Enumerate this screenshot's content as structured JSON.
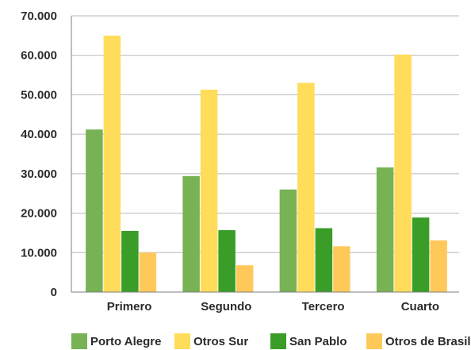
{
  "chart_data": {
    "type": "bar",
    "categories": [
      "Primero",
      "Segundo",
      "Tercero",
      "Cuarto"
    ],
    "series": [
      {
        "name": "Porto Alegre",
        "color": "#77b255",
        "values": [
          41200,
          29400,
          26000,
          31600
        ]
      },
      {
        "name": "Otros Sur",
        "color": "#ffdc5a",
        "values": [
          65000,
          51300,
          53000,
          60200
        ]
      },
      {
        "name": "San Pablo",
        "color": "#3a9d28",
        "values": [
          15500,
          15700,
          16200,
          18900
        ]
      },
      {
        "name": "Otros de Brasil",
        "color": "#ffc95a",
        "values": [
          10000,
          6800,
          11600,
          13100
        ]
      }
    ],
    "ylim": [
      0,
      70000
    ],
    "yticks": [
      "0",
      "10.000",
      "20.000",
      "30.000",
      "40.000",
      "50.000",
      "60.000",
      "70.000"
    ],
    "ytick_values": [
      0,
      10000,
      20000,
      30000,
      40000,
      50000,
      60000,
      70000
    ],
    "grid": true,
    "legend_position": "bottom",
    "title": "",
    "xlabel": "",
    "ylabel": ""
  }
}
